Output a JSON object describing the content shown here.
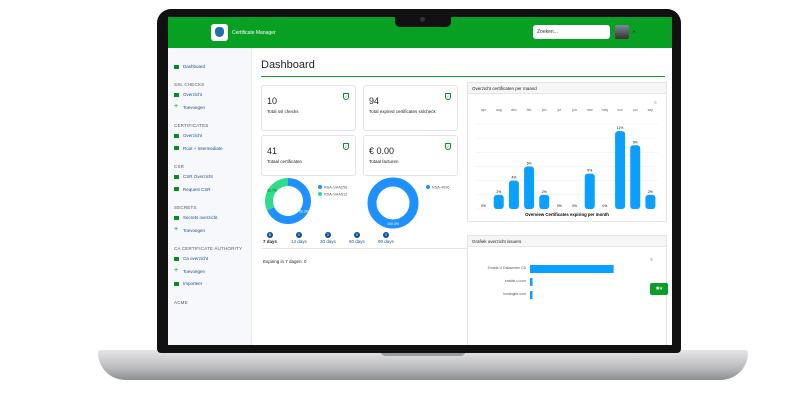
{
  "app": {
    "title": "Certificate Manager",
    "search_placeholder": "Zoeken..."
  },
  "sidebar": {
    "dashboard": "Dashboard",
    "sections": [
      {
        "heading": "SSL CHECKS",
        "items": [
          "Overzicht",
          "Toevoegen"
        ]
      },
      {
        "heading": "CERTIFICATES",
        "items": [
          "Overzicht",
          "Root + Intermediate"
        ]
      },
      {
        "heading": "CSR",
        "items": [
          "CSR Overzicht",
          "Request CSR"
        ]
      },
      {
        "heading": "SECRETS",
        "items": [
          "Secrets overzicht",
          "Toevoegen"
        ]
      },
      {
        "heading": "CA CERTIFICATE AUTHORITY",
        "items": [
          "Ca overzicht",
          "Toevoegen",
          "Importeer"
        ]
      },
      {
        "heading": "ACME",
        "items": []
      }
    ]
  },
  "main": {
    "title": "Dashboard",
    "cards": [
      {
        "value": "10",
        "label": "Total ssl checks"
      },
      {
        "value": "94",
        "label": "Total expired certificates sslcheck"
      },
      {
        "value": "41",
        "label": "Totaal certificaten"
      },
      {
        "value": "€ 0.00",
        "label": "Totaal facturen"
      }
    ],
    "donuts": [
      {
        "slices": [
          {
            "name": "RSA-SHA256",
            "value": 68.3,
            "label": "68.3%",
            "color": "#1e90ff"
          },
          {
            "name": "RSA-SHA512",
            "value": 31.7,
            "label": "31.7%",
            "color": "#2fdc8a"
          }
        ]
      },
      {
        "slices": [
          {
            "name": "RSA-4096",
            "value": 100,
            "label": "100.0%",
            "color": "#1e90ff"
          }
        ]
      }
    ],
    "tabs": [
      {
        "label": "7 days",
        "count": "0"
      },
      {
        "label": "14 days",
        "count": "0"
      },
      {
        "label": "30 days",
        "count": "0"
      },
      {
        "label": "60 days",
        "count": "0"
      },
      {
        "label": "90 days",
        "count": "0"
      }
    ],
    "expiring_text": "Expiring in 7 dagen: 0"
  },
  "chart_data": [
    {
      "type": "bar",
      "title": "Overview Certificates expiring per month",
      "panel_title": "Overzicht certificaten per maand",
      "categories": [
        "apr",
        "aug",
        "dec",
        "feb",
        "jan",
        "jul",
        "jun",
        "mar",
        "may",
        "nov",
        "oct",
        "sep"
      ],
      "values": [
        0,
        2,
        4,
        6,
        2,
        0,
        0,
        5,
        0,
        11,
        9,
        2
      ],
      "data_labels": [
        "0%",
        "2%",
        "4%",
        "6%",
        "2%",
        "0%",
        "0%",
        "5%",
        "0%",
        "11%",
        "9%",
        "2%"
      ],
      "color": "#0aa0ff",
      "grid": true
    },
    {
      "type": "bar",
      "orientation": "horizontal",
      "panel_title": "Grafiek overzicht issuers",
      "categories": [
        "Enable U Datacenter CA",
        "enable-u.com",
        "hostingbe.com"
      ],
      "values": [
        100,
        3,
        3
      ],
      "color": "#0aa0ff"
    }
  ]
}
